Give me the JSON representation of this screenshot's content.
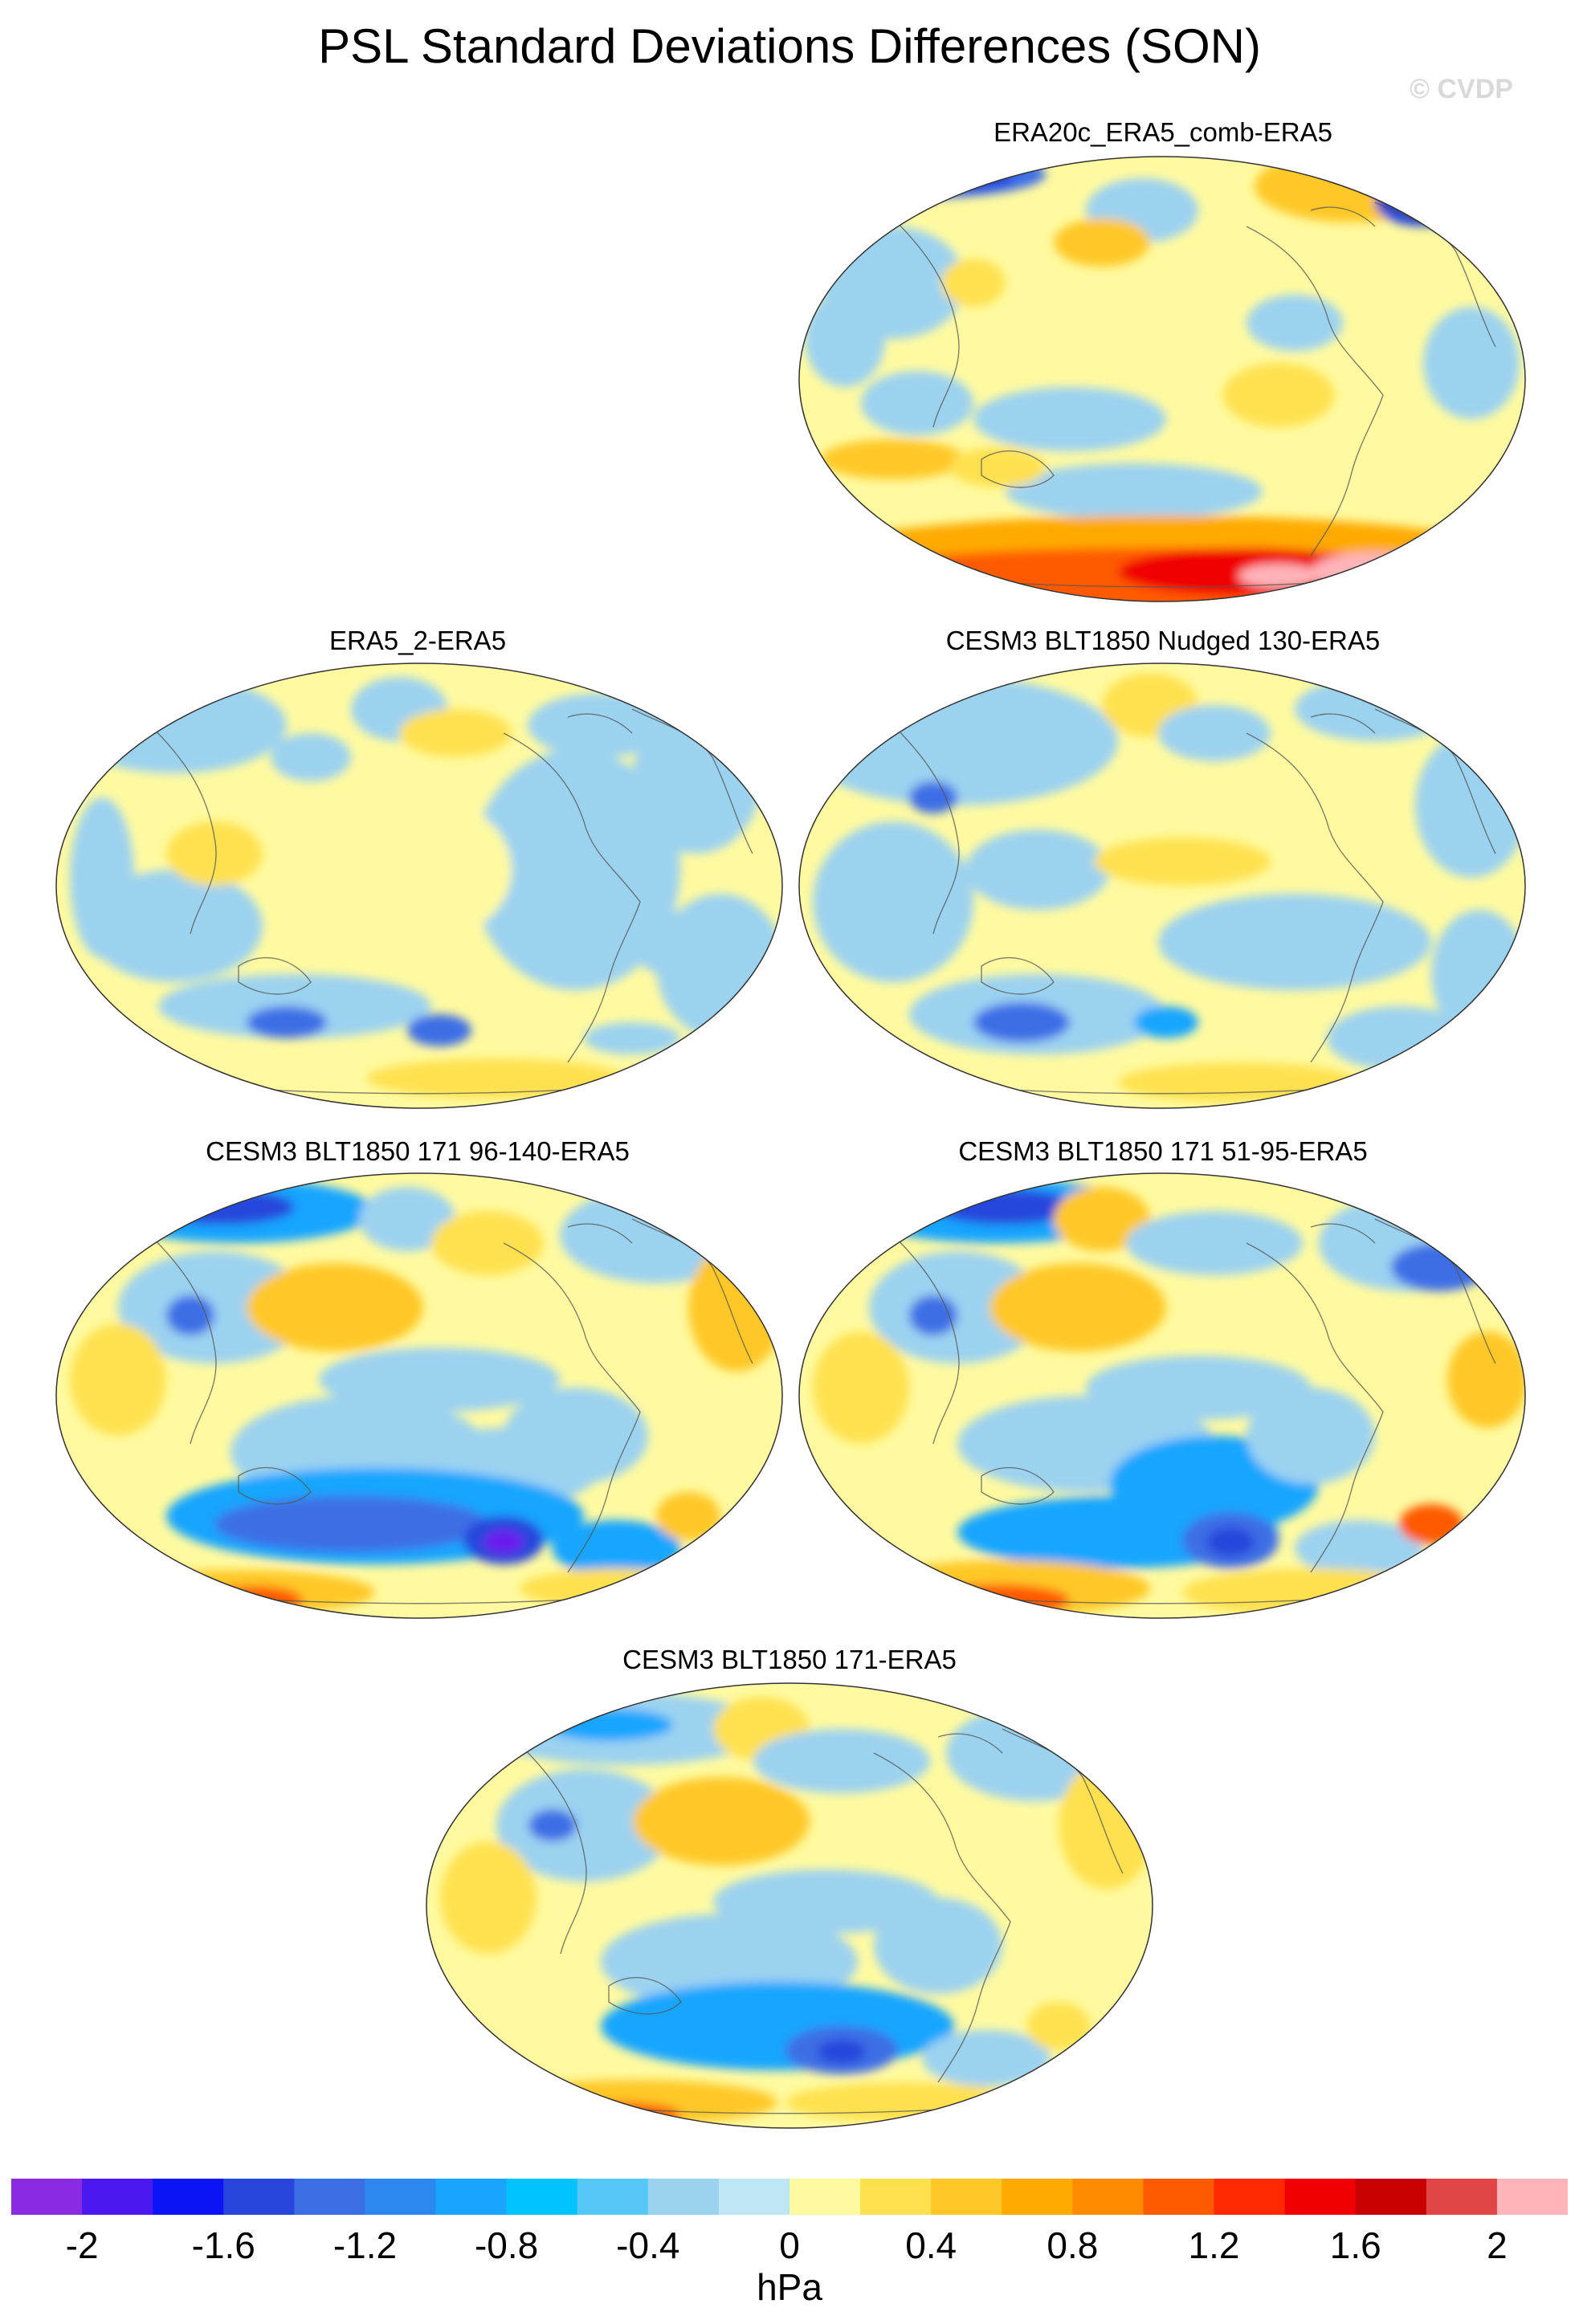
{
  "title": "PSL Standard Deviations Differences (SON)",
  "watermark": "© CVDP",
  "panels": [
    {
      "label": "ERA20c_ERA5_comb-ERA5",
      "pattern": "era20c"
    },
    {
      "label": "ERA5_2-ERA5",
      "pattern": "era5_2"
    },
    {
      "label": "CESM3 BLT1850 Nudged 130-ERA5",
      "pattern": "nudged"
    },
    {
      "label": "CESM3 BLT1850 171 96-140-ERA5",
      "pattern": "b96"
    },
    {
      "label": "CESM3 BLT1850 171 51-95-ERA5",
      "pattern": "b51"
    },
    {
      "label": "CESM3 BLT1850 171-ERA5",
      "pattern": "b171"
    }
  ],
  "colorbar": {
    "units": "hPa",
    "tick_labels": [
      "-2",
      "-1.6",
      "-1.2",
      "-0.8",
      "-0.4",
      "0",
      "0.4",
      "0.8",
      "1.2",
      "1.6",
      "2"
    ],
    "colors": [
      "#8a2be2",
      "#4b19f0",
      "#0a14f5",
      "#2846dc",
      "#3c6ee6",
      "#2d87f0",
      "#19a5ff",
      "#00c3ff",
      "#55c8f5",
      "#9bd2f0",
      "#bee6f5",
      "#fffaa0",
      "#ffe150",
      "#ffc828",
      "#ffaa00",
      "#ff8c00",
      "#ff5a00",
      "#ff2800",
      "#f00000",
      "#c80000",
      "#e14646",
      "#ffb4b9"
    ]
  },
  "colors": {
    "ocean_base": "#fffaa0",
    "land_line": "#555555"
  }
}
